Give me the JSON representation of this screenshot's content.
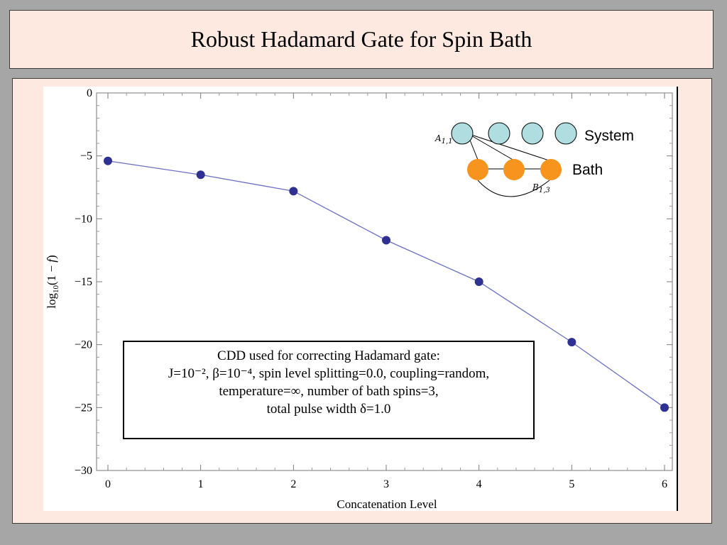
{
  "title": "Robust Hadamard Gate for Spin Bath",
  "chart_data": {
    "type": "line",
    "title": "",
    "xlabel": "Concatenation Level",
    "ylabel": "log10(1 − f)",
    "xlim": [
      -0.15,
      6.05
    ],
    "ylim": [
      -30,
      0
    ],
    "x_ticks": [
      0,
      1,
      2,
      3,
      4,
      5,
      6
    ],
    "y_ticks": [
      0,
      -5,
      -10,
      -15,
      -20,
      -25,
      -30
    ],
    "y_tick_labels": [
      "0",
      "−5",
      "−10",
      "−15",
      "−20",
      "−25",
      "−30"
    ],
    "grid": false,
    "series": [
      {
        "x": [
          0,
          1,
          2,
          3,
          4,
          5,
          6
        ],
        "y": [
          -5.4,
          -6.5,
          -7.8,
          -11.7,
          -15.0,
          -19.8,
          -25.0
        ],
        "line_color": "#6a6fc4",
        "marker_color": "#2e3192"
      }
    ]
  },
  "annotation": {
    "line1": "CDD used for correcting Hadamard gate:",
    "line2": "J=10⁻², β=10⁻⁴, spin level splitting=0.0, coupling=random,",
    "line3": "temperature=∞, number of bath spins=3,",
    "line4": "total pulse width δ=1.0"
  },
  "inset": {
    "system_label": "System",
    "bath_label": "Bath",
    "node_a_label": "A1,1",
    "node_b_label": "B1,3",
    "system_color": "#b0dde0",
    "bath_color": "#f7941d"
  }
}
